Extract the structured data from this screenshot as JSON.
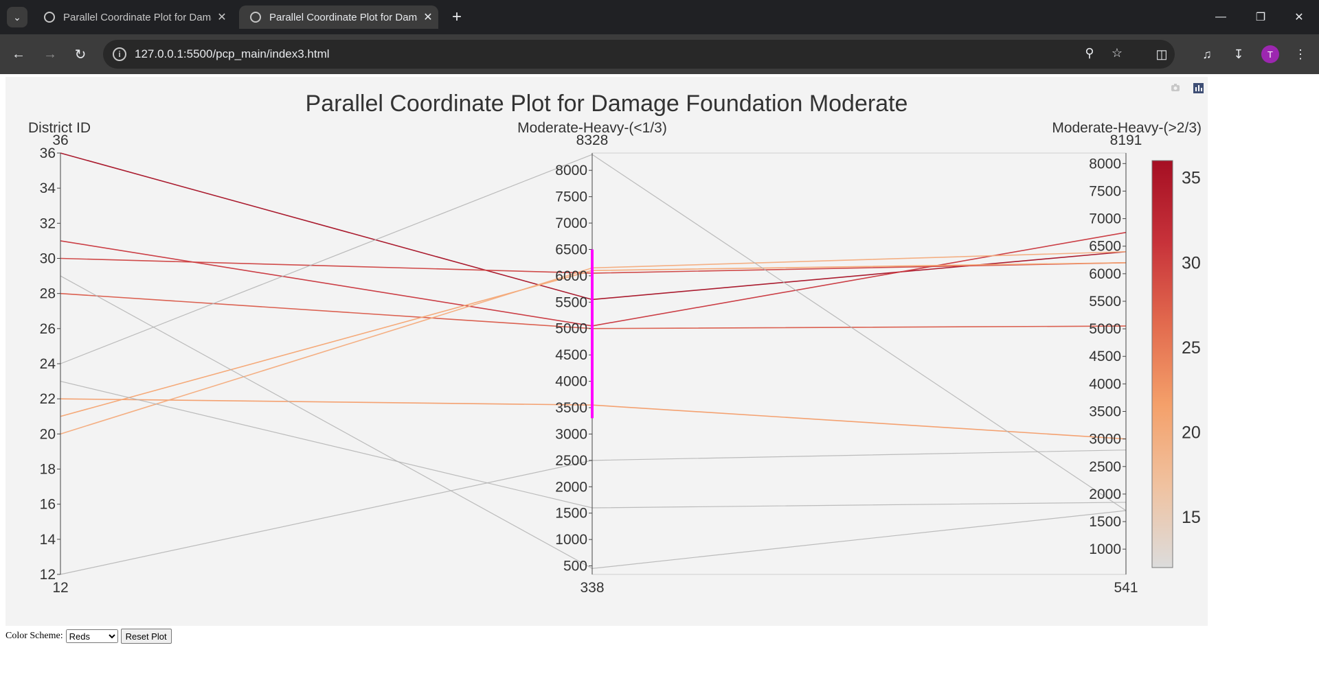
{
  "browser": {
    "tabs": [
      {
        "title": "Parallel Coordinate Plot for Damage Foundation Moderate",
        "active": false
      },
      {
        "title": "Parallel Coordinate Plot for Damage Foundation Moderate",
        "active": true
      }
    ],
    "url": "127.0.0.1:5500/pcp_main/index3.html",
    "avatar_initial": "T"
  },
  "controls": {
    "color_scheme_label": "Color Scheme:",
    "color_scheme_value": "Reds",
    "reset_label": "Reset Plot"
  },
  "chart_data": {
    "type": "parallel_coordinates",
    "title": "Parallel Coordinate Plot for Damage Foundation Moderate",
    "colorscale": [
      "#dcdcdc",
      "#f0c2a0",
      "#f4a06a",
      "#e26a4e",
      "#c7323a",
      "#a50f23"
    ],
    "color_range": [
      12,
      36
    ],
    "colorbar_ticks": [
      15,
      20,
      25,
      30,
      35
    ],
    "dimensions": [
      {
        "label": "District ID",
        "range": [
          12,
          36
        ],
        "range_min_label": "12",
        "range_max_label": "36",
        "ticks": [
          12,
          14,
          16,
          18,
          20,
          22,
          24,
          26,
          28,
          30,
          32,
          34,
          36
        ]
      },
      {
        "label": "Moderate-Heavy-(<1/3)",
        "range": [
          338,
          8328
        ],
        "range_min_label": "338",
        "range_max_label": "8328",
        "ticks": [
          500,
          1000,
          1500,
          2000,
          2500,
          3000,
          3500,
          4000,
          4500,
          5000,
          5500,
          6000,
          6500,
          7000,
          7500,
          8000
        ],
        "constraint": [
          3300,
          6500
        ]
      },
      {
        "label": "Moderate-Heavy-(>2/3)",
        "range": [
          541,
          8191
        ],
        "range_min_label": "541",
        "range_max_label": "8191",
        "ticks": [
          1000,
          1500,
          2000,
          2500,
          3000,
          3500,
          4000,
          4500,
          5000,
          5500,
          6000,
          6500,
          7000,
          7500,
          8000
        ]
      }
    ],
    "lines": [
      {
        "district": 36,
        "v1": 5550,
        "v2": 6400
      },
      {
        "district": 31,
        "v1": 5050,
        "v2": 6750
      },
      {
        "district": 30,
        "v1": 6050,
        "v2": 6200
      },
      {
        "district": 28,
        "v1": 5000,
        "v2": 5050
      },
      {
        "district": 22,
        "v1": 3550,
        "v2": 3000
      },
      {
        "district": 21,
        "v1": 6100,
        "v2": 6200
      },
      {
        "district": 20,
        "v1": 6150,
        "v2": 6400
      },
      {
        "district": 29,
        "v1": 450,
        "v2": 1700
      },
      {
        "district": 24,
        "v1": 8300,
        "v2": 1700
      },
      {
        "district": 23,
        "v1": 1600,
        "v2": 1850
      },
      {
        "district": 12,
        "v1": 2500,
        "v2": 2800
      }
    ]
  }
}
